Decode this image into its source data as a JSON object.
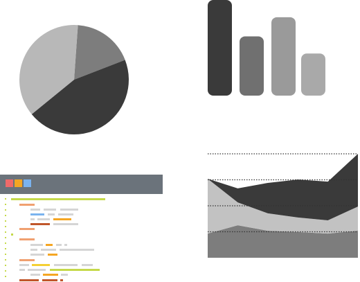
{
  "chart_data": [
    {
      "type": "pie",
      "values": [
        18,
        45,
        37
      ],
      "colors": [
        "#7d7d7d",
        "#3a3a3a",
        "#b8b8b8"
      ]
    },
    {
      "type": "bar",
      "values": [
        100,
        62,
        82,
        44
      ],
      "colors": [
        "#3a3a3a",
        "#707070",
        "#9a9a9a",
        "#a9a9a9"
      ],
      "ylim": [
        0,
        100
      ]
    },
    {
      "type": "area",
      "stacked": true,
      "categories": [
        null,
        null,
        null,
        null,
        null,
        null
      ],
      "series": [
        {
          "color": "#7d7d7d",
          "values": [
            0.93,
            1.25,
            1.04,
            0.99,
            0.93,
            1.04
          ]
        },
        {
          "color": "#c2c2c2",
          "values": [
            2.11,
            0.88,
            0.67,
            0.56,
            0.51,
            0.93
          ]
        },
        {
          "color": "#3a3a3a",
          "values": [
            0,
            0.54,
            1.17,
            1.46,
            1.49,
            2.03
          ]
        }
      ],
      "ylim": [
        0,
        4
      ],
      "yticks": [
        1,
        2,
        3,
        4
      ],
      "grid": true
    }
  ]
}
